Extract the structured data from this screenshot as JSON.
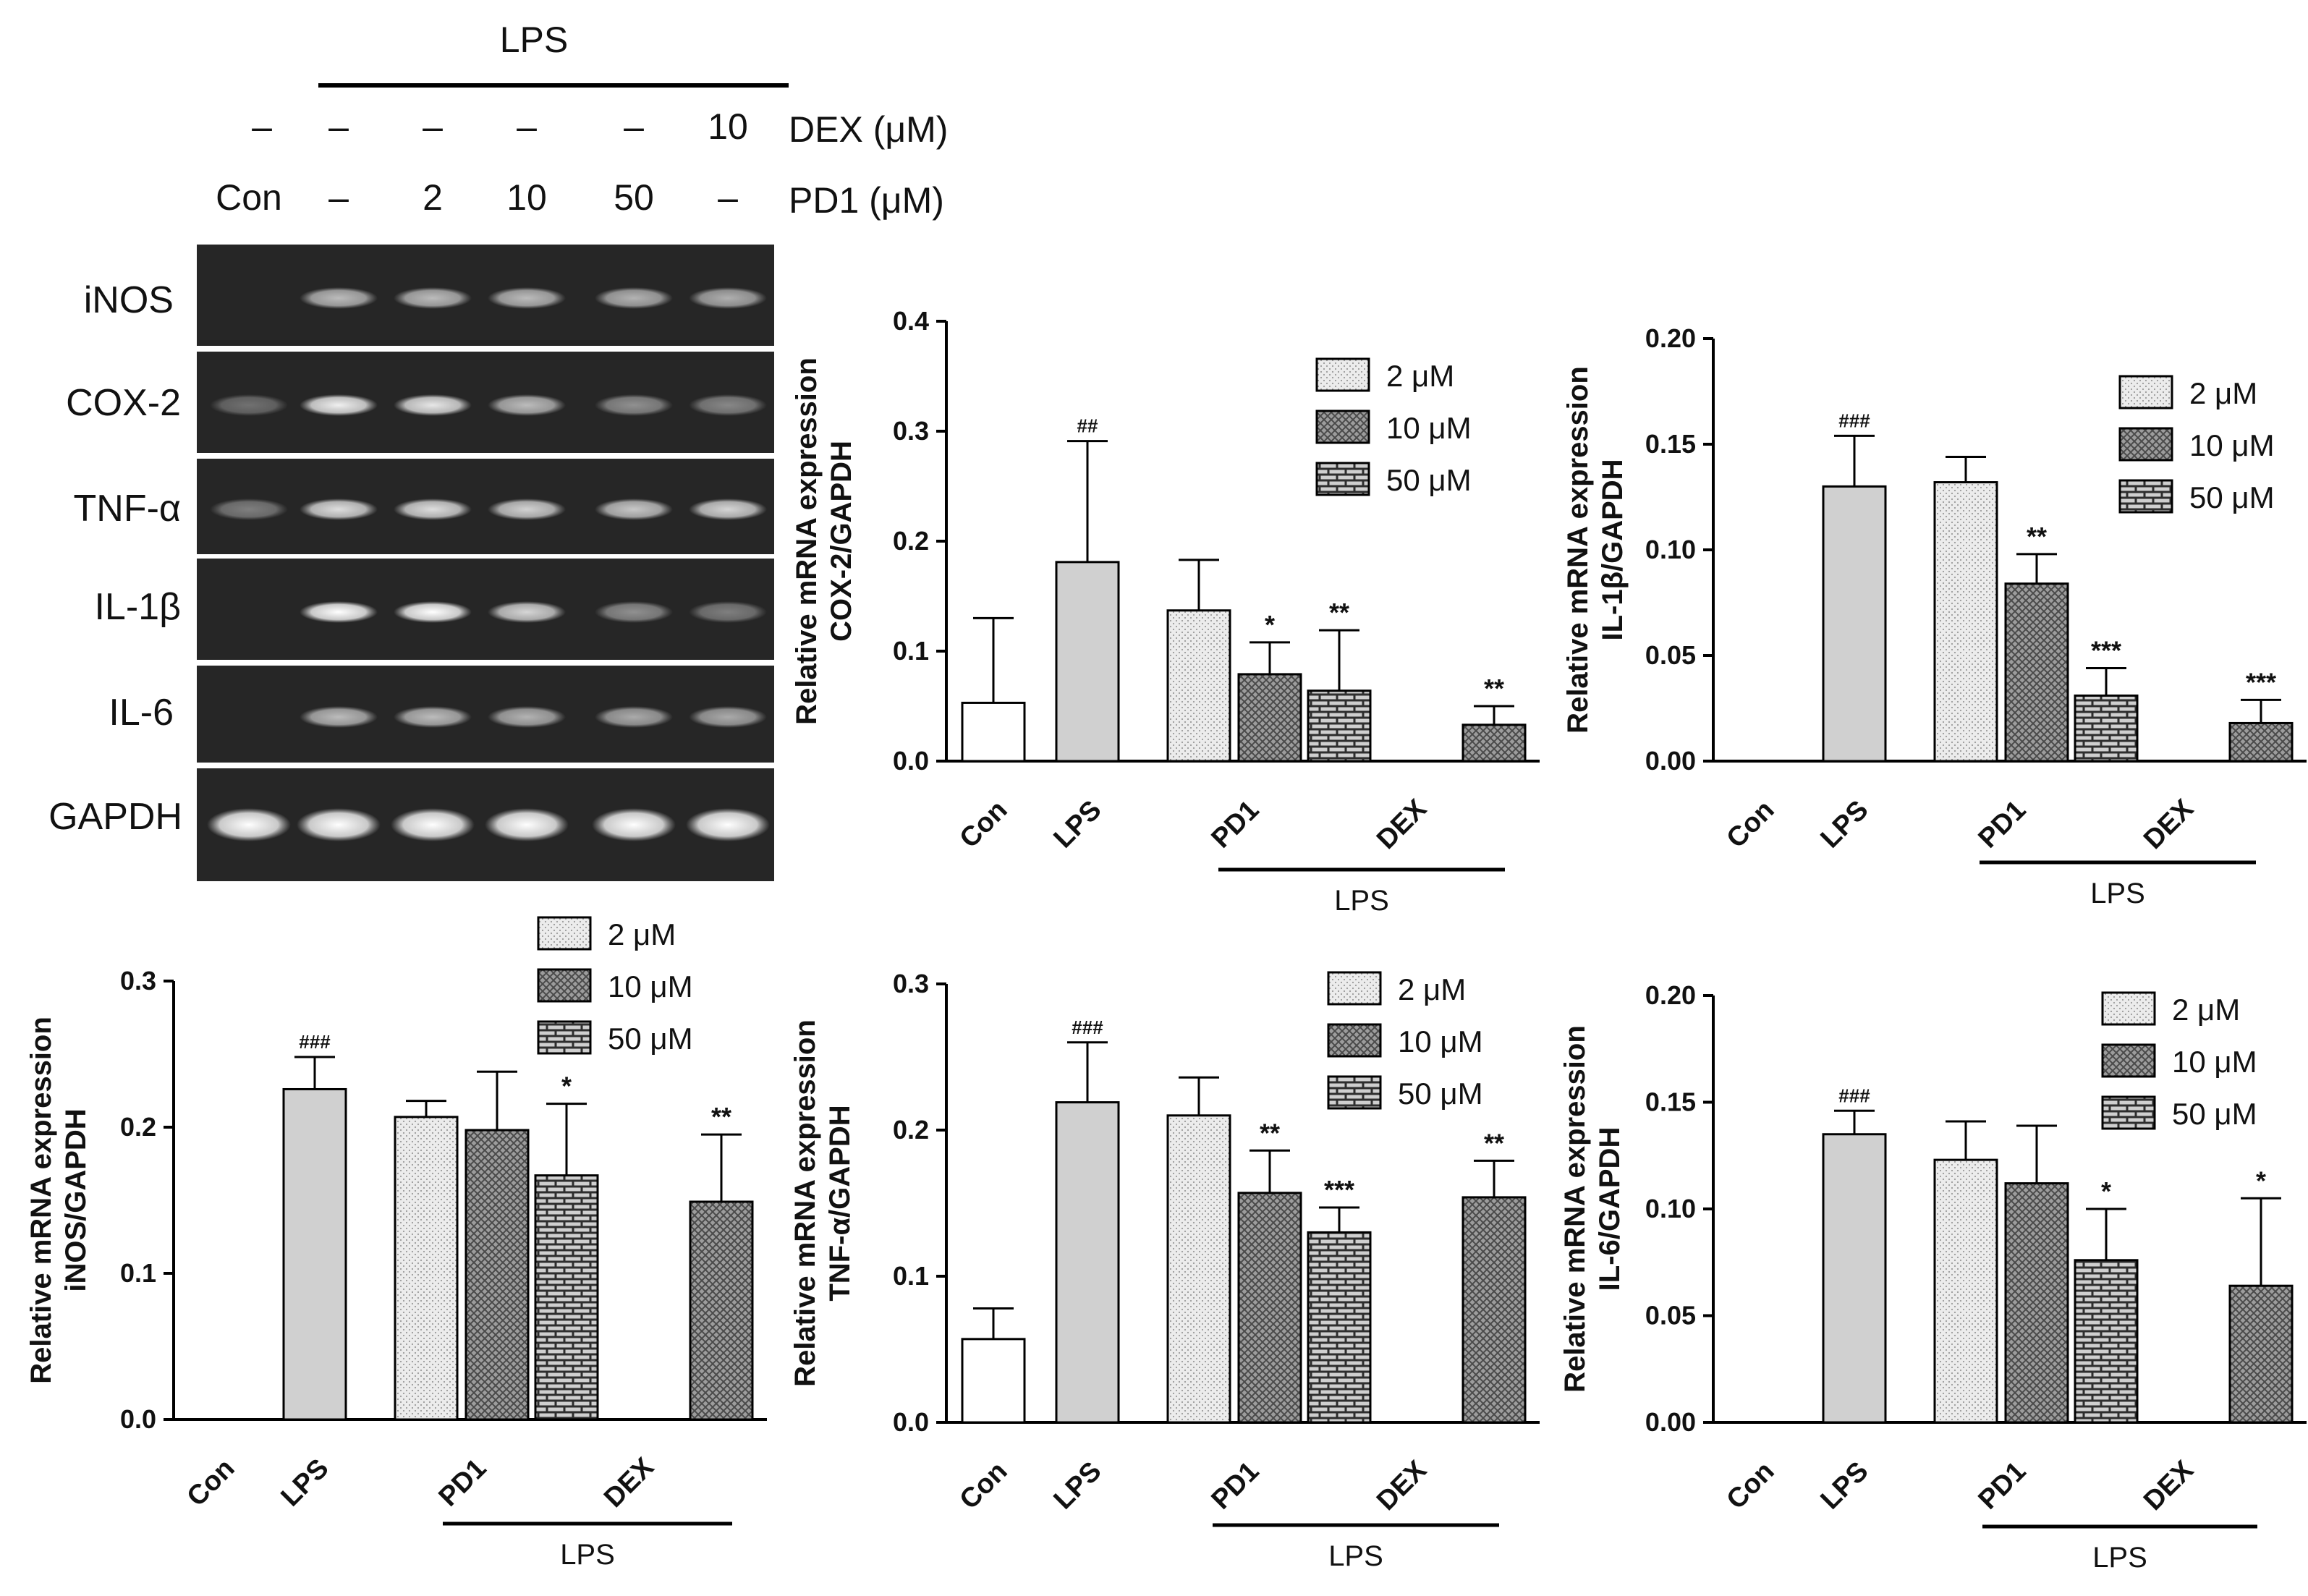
{
  "gel": {
    "lps_label": "LPS",
    "dex_row": [
      "–",
      "–",
      "–",
      "–",
      "–",
      "10"
    ],
    "dex_label": "DEX (μM)",
    "pd1_row": [
      "Con",
      "–",
      "2",
      "10",
      "50",
      "–"
    ],
    "pd1_label": "PD1 (μM)",
    "genes": [
      "iNOS",
      "COX-2",
      "TNF-α",
      "IL-1β",
      "IL-6",
      "GAPDH"
    ],
    "band_intensity": [
      [
        0.0,
        0.55,
        0.55,
        0.55,
        0.5,
        0.48
      ],
      [
        0.12,
        0.85,
        0.8,
        0.55,
        0.3,
        0.25
      ],
      [
        0.2,
        0.75,
        0.75,
        0.68,
        0.62,
        0.7
      ],
      [
        0.0,
        1.0,
        0.95,
        0.7,
        0.3,
        0.2
      ],
      [
        0.0,
        0.55,
        0.55,
        0.5,
        0.45,
        0.45
      ],
      [
        1.0,
        1.0,
        1.0,
        1.0,
        1.0,
        1.0
      ]
    ]
  },
  "colors": {
    "con_bar": "#ffffff",
    "lps_bar": "#d0d0d0",
    "pattern_2uM": "#e2e2e2",
    "pattern_10uM": "#8a8a8a",
    "pattern_50uM": "#3a3a3a",
    "gel_background": "#262626",
    "band": "#f2f2f2"
  },
  "chart_data": [
    {
      "id": "cox2",
      "type": "bar",
      "ylabel_line1": "Relative mRNA expression",
      "ylabel_line2": "COX-2/GAPDH",
      "ylim": [
        0,
        0.4
      ],
      "yticks": [
        "0.0",
        "0.1",
        "0.2",
        "0.3",
        "0.4"
      ],
      "categories": [
        "Con",
        "LPS",
        "PD1",
        "DEX"
      ],
      "group_label": "LPS",
      "legend": [
        "2 μM",
        "10 μM",
        "50 μM"
      ],
      "bars": [
        {
          "group": "Con",
          "pattern": "con",
          "value": 0.053,
          "err": 0.077,
          "sig": ""
        },
        {
          "group": "LPS",
          "pattern": "lps",
          "value": 0.181,
          "err": 0.11,
          "sig": "##"
        },
        {
          "group": "PD1",
          "pattern": "2uM",
          "value": 0.137,
          "err": 0.046,
          "sig": ""
        },
        {
          "group": "PD1",
          "pattern": "10uM",
          "value": 0.079,
          "err": 0.029,
          "sig": "*"
        },
        {
          "group": "PD1",
          "pattern": "50uM",
          "value": 0.064,
          "err": 0.055,
          "sig": "**"
        },
        {
          "group": "DEX",
          "pattern": "10uM",
          "value": 0.033,
          "err": 0.017,
          "sig": "**"
        }
      ]
    },
    {
      "id": "il1b",
      "type": "bar",
      "ylabel_line1": "Relative mRNA expression",
      "ylabel_line2": "IL-1β/GAPDH",
      "ylim": [
        0,
        0.2
      ],
      "yticks": [
        "0.00",
        "0.05",
        "0.10",
        "0.15",
        "0.20"
      ],
      "categories": [
        "Con",
        "LPS",
        "PD1",
        "DEX"
      ],
      "group_label": "LPS",
      "legend": [
        "2 μM",
        "10 μM",
        "50 μM"
      ],
      "bars": [
        {
          "group": "Con",
          "pattern": "con",
          "value": 0.0,
          "err": 0.0,
          "sig": ""
        },
        {
          "group": "LPS",
          "pattern": "lps",
          "value": 0.13,
          "err": 0.024,
          "sig": "###"
        },
        {
          "group": "PD1",
          "pattern": "2uM",
          "value": 0.132,
          "err": 0.012,
          "sig": ""
        },
        {
          "group": "PD1",
          "pattern": "10uM",
          "value": 0.084,
          "err": 0.014,
          "sig": "**"
        },
        {
          "group": "PD1",
          "pattern": "50uM",
          "value": 0.031,
          "err": 0.013,
          "sig": "***"
        },
        {
          "group": "DEX",
          "pattern": "10uM",
          "value": 0.018,
          "err": 0.011,
          "sig": "***"
        }
      ]
    },
    {
      "id": "inos",
      "type": "bar",
      "ylabel_line1": "Relative mRNA expression",
      "ylabel_line2": "iNOS/GAPDH",
      "ylim": [
        0,
        0.3
      ],
      "yticks": [
        "0.0",
        "0.1",
        "0.2",
        "0.3"
      ],
      "categories": [
        "Con",
        "LPS",
        "PD1",
        "DEX"
      ],
      "group_label": "LPS",
      "legend": [
        "2 μM",
        "10 μM",
        "50 μM"
      ],
      "bars": [
        {
          "group": "Con",
          "pattern": "con",
          "value": 0.0,
          "err": 0.0,
          "sig": ""
        },
        {
          "group": "LPS",
          "pattern": "lps",
          "value": 0.226,
          "err": 0.022,
          "sig": "###"
        },
        {
          "group": "PD1",
          "pattern": "2uM",
          "value": 0.207,
          "err": 0.011,
          "sig": ""
        },
        {
          "group": "PD1",
          "pattern": "10uM",
          "value": 0.198,
          "err": 0.04,
          "sig": ""
        },
        {
          "group": "PD1",
          "pattern": "50uM",
          "value": 0.167,
          "err": 0.049,
          "sig": "*"
        },
        {
          "group": "DEX",
          "pattern": "10uM",
          "value": 0.149,
          "err": 0.046,
          "sig": "**"
        }
      ]
    },
    {
      "id": "tnfa",
      "type": "bar",
      "ylabel_line1": "Relative mRNA expression",
      "ylabel_line2": "TNF-α/GAPDH",
      "ylim": [
        0,
        0.3
      ],
      "yticks": [
        "0.0",
        "0.1",
        "0.2",
        "0.3"
      ],
      "categories": [
        "Con",
        "LPS",
        "PD1",
        "DEX"
      ],
      "group_label": "LPS",
      "legend": [
        "2 μM",
        "10 μM",
        "50 μM"
      ],
      "bars": [
        {
          "group": "Con",
          "pattern": "con",
          "value": 0.057,
          "err": 0.021,
          "sig": ""
        },
        {
          "group": "LPS",
          "pattern": "lps",
          "value": 0.219,
          "err": 0.041,
          "sig": "###"
        },
        {
          "group": "PD1",
          "pattern": "2uM",
          "value": 0.21,
          "err": 0.026,
          "sig": ""
        },
        {
          "group": "PD1",
          "pattern": "10uM",
          "value": 0.157,
          "err": 0.029,
          "sig": "**"
        },
        {
          "group": "PD1",
          "pattern": "50uM",
          "value": 0.13,
          "err": 0.017,
          "sig": "***"
        },
        {
          "group": "DEX",
          "pattern": "10uM",
          "value": 0.154,
          "err": 0.025,
          "sig": "**"
        }
      ]
    },
    {
      "id": "il6",
      "type": "bar",
      "ylabel_line1": "Relative mRNA expression",
      "ylabel_line2": "IL-6/GAPDH",
      "ylim": [
        0,
        0.2
      ],
      "yticks": [
        "0.00",
        "0.05",
        "0.10",
        "0.15",
        "0.20"
      ],
      "categories": [
        "Con",
        "LPS",
        "PD1",
        "DEX"
      ],
      "group_label": "LPS",
      "legend": [
        "2 μM",
        "10 μM",
        "50 μM"
      ],
      "bars": [
        {
          "group": "Con",
          "pattern": "con",
          "value": 0.0,
          "err": 0.0,
          "sig": ""
        },
        {
          "group": "LPS",
          "pattern": "lps",
          "value": 0.135,
          "err": 0.011,
          "sig": "###"
        },
        {
          "group": "PD1",
          "pattern": "2uM",
          "value": 0.123,
          "err": 0.018,
          "sig": ""
        },
        {
          "group": "PD1",
          "pattern": "10uM",
          "value": 0.112,
          "err": 0.027,
          "sig": ""
        },
        {
          "group": "PD1",
          "pattern": "50uM",
          "value": 0.076,
          "err": 0.024,
          "sig": "*"
        },
        {
          "group": "DEX",
          "pattern": "10uM",
          "value": 0.064,
          "err": 0.041,
          "sig": "*"
        }
      ]
    }
  ]
}
